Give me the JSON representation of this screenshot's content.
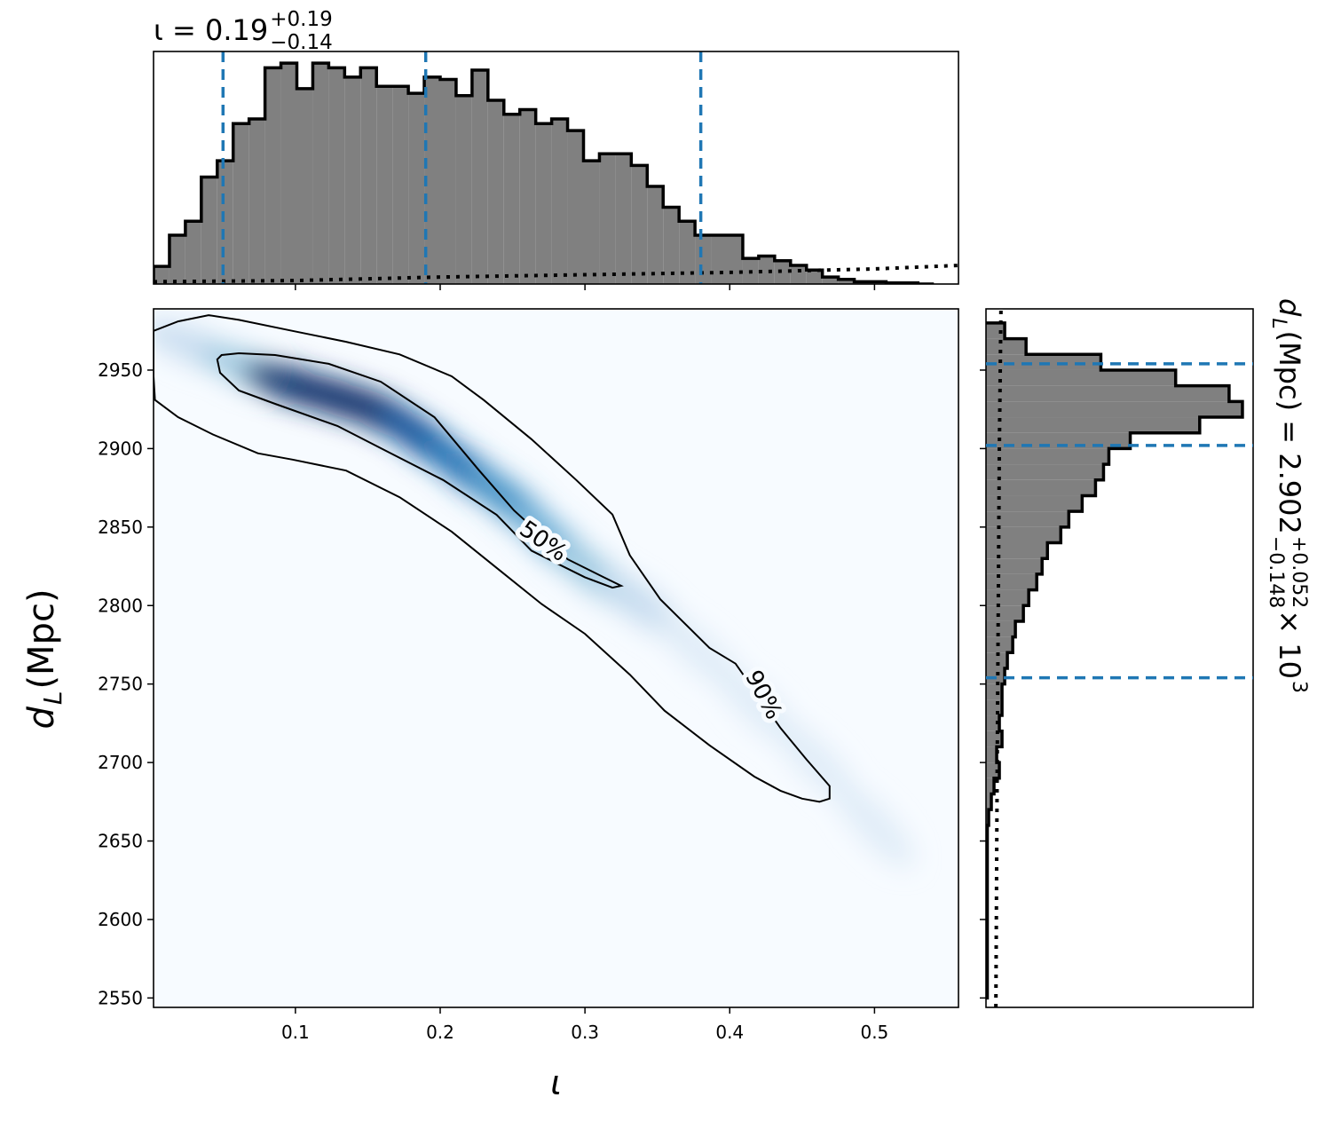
{
  "chart_data": {
    "type": "corner",
    "title": {
      "text": "ι = 0.19",
      "sup": "+0.19",
      "sub": "−0.14"
    },
    "x_label": "ι",
    "y_label": {
      "main": "d",
      "sub": "L",
      "rest": " (Mpc)"
    },
    "side_label": {
      "main": "d",
      "sub": "L",
      "rest": " (Mpc) = 2.902",
      "sup": "+0.052",
      "sub2": "−0.148",
      "tail": " × 10",
      "exp": "3"
    },
    "xlim": [
      0.002,
      0.558
    ],
    "xticks": [
      0.1,
      0.2,
      0.3,
      0.4,
      0.5
    ],
    "ylim": [
      2544,
      2989
    ],
    "yticks": [
      2550,
      2600,
      2650,
      2700,
      2750,
      2800,
      2850,
      2900,
      2950
    ],
    "hist_x": {
      "bins": [
        0.002,
        0.013,
        0.024,
        0.035,
        0.046,
        0.057,
        0.068,
        0.079,
        0.09,
        0.101,
        0.112,
        0.123,
        0.134,
        0.145,
        0.156,
        0.167,
        0.178,
        0.189,
        0.2,
        0.211,
        0.222,
        0.233,
        0.244,
        0.255,
        0.266,
        0.277,
        0.288,
        0.299,
        0.31,
        0.321,
        0.332,
        0.343,
        0.354,
        0.365,
        0.376,
        0.387,
        0.398,
        0.409,
        0.42,
        0.431,
        0.442,
        0.453,
        0.464,
        0.475,
        0.486,
        0.497,
        0.508,
        0.519,
        0.53,
        0.541
      ],
      "counts": [
        7.6,
        21,
        27,
        46,
        53,
        69,
        71,
        93,
        95,
        84,
        95,
        93,
        89,
        93,
        85,
        85,
        82,
        89,
        88,
        81,
        92,
        79,
        73,
        75,
        69,
        71,
        66,
        53,
        56,
        56,
        51,
        42,
        33,
        27,
        21,
        21,
        21,
        11,
        12,
        10,
        8,
        6,
        3,
        2,
        1,
        1,
        0.5,
        0.5,
        0
      ],
      "lim": [
        0,
        100
      ],
      "color": "#808080",
      "quantiles": [
        0.05,
        0.19,
        0.38
      ],
      "prior_x": [
        0.002,
        0.1,
        0.2,
        0.3,
        0.4,
        0.5,
        0.558
      ],
      "prior_y": [
        1,
        1.5,
        3,
        4,
        5,
        6.5,
        8
      ]
    },
    "hist_y": {
      "bins": [
        2550,
        2560,
        2570,
        2580,
        2590,
        2600,
        2610,
        2620,
        2630,
        2640,
        2650,
        2660,
        2670,
        2680,
        2690,
        2700,
        2710,
        2720,
        2730,
        2740,
        2750,
        2760,
        2770,
        2780,
        2790,
        2800,
        2810,
        2820,
        2830,
        2840,
        2850,
        2860,
        2870,
        2880,
        2890,
        2900,
        2910,
        2920,
        2930,
        2940,
        2950,
        2960,
        2970,
        2980
      ],
      "counts": [
        0.5,
        0.5,
        0.5,
        0.5,
        0.5,
        0.5,
        0.5,
        0.5,
        0.5,
        0.5,
        0.5,
        1,
        2,
        3,
        5,
        4,
        6,
        5,
        6,
        6,
        7,
        8,
        10,
        11,
        14,
        16,
        19,
        21,
        23,
        28,
        31,
        36,
        41,
        44,
        46,
        54,
        80,
        96,
        91,
        71,
        43,
        15,
        7
      ],
      "lim": [
        0,
        100
      ],
      "color": "#808080",
      "quantiles": [
        2754,
        2902,
        2954
      ],
      "prior_y": [
        2544,
        2700,
        2900,
        2989
      ],
      "prior_x": [
        3.7,
        4.2,
        5,
        5.6
      ]
    },
    "quantile_color": "#1f77b4",
    "density": {
      "x": [
        0.03,
        0.07,
        0.1,
        0.13,
        0.16,
        0.19,
        0.22,
        0.25,
        0.28,
        0.31,
        0.34,
        0.38,
        0.42,
        0.46,
        0.5
      ],
      "y": [
        2965,
        2950,
        2940,
        2932,
        2922,
        2905,
        2885,
        2865,
        2840,
        2818,
        2800,
        2770,
        2735,
        2700,
        2660
      ],
      "z": [
        0.15,
        0.35,
        0.9,
        1.0,
        0.9,
        0.8,
        0.7,
        0.6,
        0.45,
        0.3,
        0.2,
        0.12,
        0.08,
        0.05,
        0.03
      ],
      "colormap": [
        "#f7fbff",
        "#deebf7",
        "#c6dbef",
        "#9ecae1",
        "#6baed6",
        "#4292c6",
        "#2171b5",
        "#08519c",
        "#08306b"
      ]
    },
    "contours": [
      {
        "label": "50%",
        "x": [
          0.049,
          0.061,
          0.086,
          0.123,
          0.159,
          0.196,
          0.227,
          0.251,
          0.288,
          0.313,
          0.325,
          0.319,
          0.3,
          0.263,
          0.239,
          0.202,
          0.165,
          0.129,
          0.086,
          0.061,
          0.048,
          0.046
        ],
        "y": [
          2959.6,
          2960.7,
          2959.6,
          2954,
          2942.6,
          2920,
          2886,
          2860.6,
          2829.5,
          2818,
          2812.6,
          2811.4,
          2818,
          2835,
          2857.8,
          2880,
          2897.4,
          2914.4,
          2928.5,
          2937,
          2948.3,
          2956.8
        ]
      },
      {
        "label": "90%",
        "x": [
          0.002,
          0.019,
          0.04,
          0.061,
          0.098,
          0.135,
          0.172,
          0.208,
          0.23,
          0.263,
          0.294,
          0.319,
          0.331,
          0.352,
          0.386,
          0.404,
          0.435,
          0.453,
          0.469,
          0.469,
          0.462,
          0.45,
          0.435,
          0.417,
          0.386,
          0.355,
          0.331,
          0.3,
          0.27,
          0.239,
          0.208,
          0.172,
          0.135,
          0.098,
          0.074,
          0.043,
          0.019,
          0.003,
          0.002
        ],
        "y": [
          2975,
          2981,
          2985,
          2982,
          2975,
          2968,
          2960,
          2946,
          2931,
          2906,
          2880,
          2858,
          2832,
          2804,
          2773,
          2763,
          2722,
          2702,
          2685,
          2677,
          2675,
          2677,
          2682,
          2691,
          2711,
          2733,
          2756,
          2782,
          2801,
          2824,
          2847,
          2869,
          2886,
          2893,
          2897,
          2909,
          2920,
          2931,
          2946
        ]
      }
    ]
  }
}
